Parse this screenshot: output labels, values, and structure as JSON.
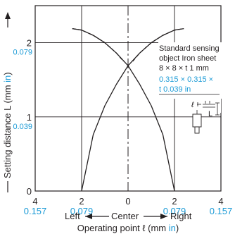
{
  "chart_data": {
    "type": "line",
    "xlim": [
      -4,
      4
    ],
    "ylim": [
      0,
      2.5
    ],
    "x_ticks": [
      {
        "value": -4,
        "mm": "4",
        "inch": "0.157"
      },
      {
        "value": -2,
        "mm": "2",
        "inch": "0.079"
      },
      {
        "value": 0,
        "mm": "0",
        "inch": ""
      },
      {
        "value": 2,
        "mm": "2",
        "inch": "0.079"
      },
      {
        "value": 4,
        "mm": "4",
        "inch": "0.157"
      }
    ],
    "y_ticks": [
      {
        "value": 0,
        "mm": "0",
        "inch": ""
      },
      {
        "value": 1,
        "mm": "1",
        "inch": "0.039"
      },
      {
        "value": 2,
        "mm": "2",
        "inch": "0.079"
      }
    ],
    "xlabel": {
      "prefix": "Operating point ℓ (mm ",
      "unit": "in",
      "suffix": ")"
    },
    "direction": {
      "left": "Left",
      "center": "Center",
      "right": "Right"
    },
    "ylabel": {
      "prefix": "Setting distance L (mm ",
      "unit": "in",
      "suffix": ")"
    },
    "series": [
      {
        "style": "solid",
        "x": [
          2.0,
          1.5,
          1.0,
          0.5,
          0.0,
          -0.5,
          -1.0,
          -1.5,
          -2.0,
          -2.4
        ],
        "y": [
          0.0,
          0.76,
          1.15,
          1.44,
          1.69,
          1.86,
          2.0,
          2.1,
          2.17,
          2.19
        ]
      },
      {
        "style": "dashed",
        "x": [
          -2.4,
          -2.0,
          -1.5,
          -1.0,
          -0.5,
          -0.2
        ],
        "y": [
          2.19,
          2.17,
          2.1,
          2.0,
          1.86,
          1.75
        ]
      },
      {
        "style": "solid",
        "x": [
          -2.0,
          -1.5,
          -1.0,
          -0.5,
          0.0,
          0.5,
          1.0,
          1.5,
          2.0,
          2.4
        ],
        "y": [
          0.0,
          0.76,
          1.15,
          1.44,
          1.69,
          1.86,
          2.0,
          2.1,
          2.17,
          2.19
        ]
      },
      {
        "style": "dashed",
        "x": [
          0.2,
          0.5,
          1.0,
          1.5,
          2.0,
          2.4
        ],
        "y": [
          1.75,
          1.86,
          2.0,
          2.1,
          2.17,
          2.19
        ]
      }
    ],
    "annotation": {
      "line1": "Standard sensing",
      "line2": "object Iron sheet",
      "line3": "8 × 8 × t 1 mm",
      "line4": "0.315 × 0.315 ×",
      "line5": "t 0.039 in",
      "ell": "ℓ",
      "L": "L"
    },
    "colors": {
      "axis": "#231f20",
      "accent": "#1a9ad6"
    }
  }
}
